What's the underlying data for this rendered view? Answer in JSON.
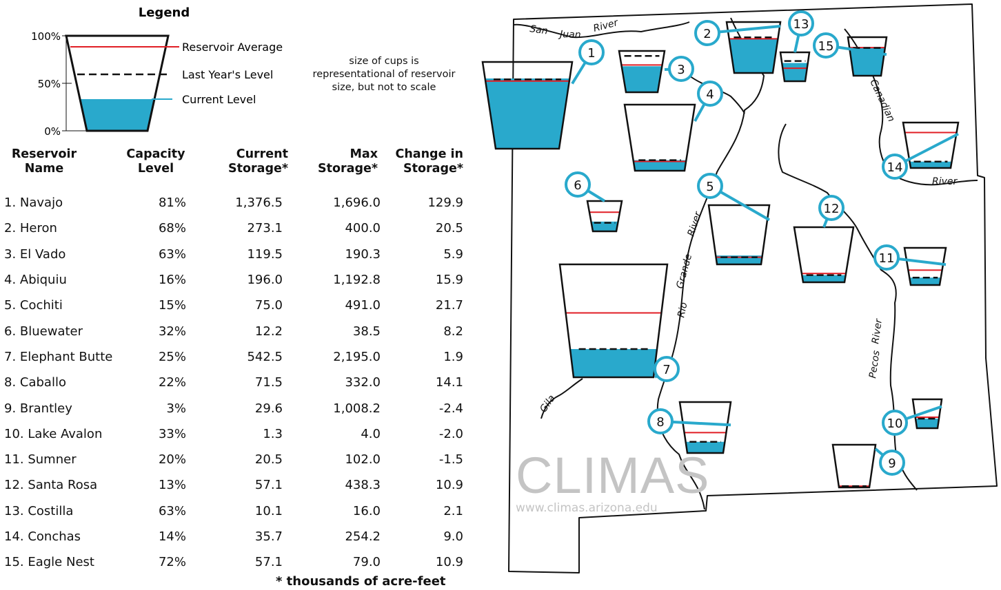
{
  "legend": {
    "title": "Legend",
    "tick_100": "100%",
    "tick_50": "50%",
    "tick_0": "0%",
    "label_average": "Reservoir Average",
    "label_last_year": "Last Year's Level",
    "label_current": "Current Level"
  },
  "note": {
    "line1": "size of cups is",
    "line2": "representational of reservoir",
    "line3": "size, but not to scale"
  },
  "table": {
    "headers": [
      {
        "line1": "Reservoir",
        "line2": "Name"
      },
      {
        "line1": "Capacity",
        "line2": "Level"
      },
      {
        "line1": "Current",
        "line2": "Storage*"
      },
      {
        "line1": "Max",
        "line2": "Storage*"
      },
      {
        "line1": "Change in",
        "line2": "Storage*"
      }
    ],
    "rows": [
      {
        "name": "1. Navajo",
        "capacity": "81%",
        "current": "1,376.5",
        "max": "1,696.0",
        "change": "129.9"
      },
      {
        "name": "2. Heron",
        "capacity": "68%",
        "current": "273.1",
        "max": "400.0",
        "change": "20.5"
      },
      {
        "name": "3. El Vado",
        "capacity": "63%",
        "current": "119.5",
        "max": "190.3",
        "change": "5.9"
      },
      {
        "name": "4. Abiquiu",
        "capacity": "16%",
        "current": "196.0",
        "max": "1,192.8",
        "change": "15.9"
      },
      {
        "name": "5. Cochiti",
        "capacity": "15%",
        "current": "75.0",
        "max": "491.0",
        "change": "21.7"
      },
      {
        "name": "6. Bluewater",
        "capacity": "32%",
        "current": "12.2",
        "max": "38.5",
        "change": "8.2"
      },
      {
        "name": "7. Elephant Butte",
        "capacity": "25%",
        "current": "542.5",
        "max": "2,195.0",
        "change": "1.9"
      },
      {
        "name": "8. Caballo",
        "capacity": "22%",
        "current": "71.5",
        "max": "332.0",
        "change": "14.1"
      },
      {
        "name": "9. Brantley",
        "capacity": "3%",
        "current": "29.6",
        "max": "1,008.2",
        "change": "-2.4"
      },
      {
        "name": "10. Lake Avalon",
        "capacity": "33%",
        "current": "1.3",
        "max": "4.0",
        "change": "-2.0"
      },
      {
        "name": "11. Sumner",
        "capacity": "20%",
        "current": "20.5",
        "max": "102.0",
        "change": "-1.5"
      },
      {
        "name": "12. Santa Rosa",
        "capacity": "13%",
        "current": "57.1",
        "max": "438.3",
        "change": "10.9"
      },
      {
        "name": "13. Costilla",
        "capacity": "63%",
        "current": "10.1",
        "max": "16.0",
        "change": "2.1"
      },
      {
        "name": "14. Conchas",
        "capacity": "14%",
        "current": "35.7",
        "max": "254.2",
        "change": "9.0"
      },
      {
        "name": "15. Eagle Nest",
        "capacity": "72%",
        "current": "57.1",
        "max": "79.0",
        "change": "10.9"
      }
    ],
    "footnote": "* thousands of acre-feet"
  },
  "map": {
    "rivers": {
      "san": "San",
      "juan": "Juan",
      "san_juan_river": "River",
      "rio": "Rio",
      "grande": "Grande",
      "rio_grande_river": "River",
      "canadian": "Canadian",
      "canadian_river": "River",
      "pecos": "Pecos",
      "pecos_river": "River",
      "gila": "Gila"
    },
    "cups": [
      {
        "num": "1",
        "current": 0.81,
        "average": 0.78,
        "last": 0.8
      },
      {
        "num": "2",
        "current": 0.68,
        "average": 0.67,
        "last": 0.7
      },
      {
        "num": "3",
        "current": 0.63,
        "average": 0.66,
        "last": 0.88
      },
      {
        "num": "4",
        "current": 0.16,
        "average": 0.14,
        "last": 0.16
      },
      {
        "num": "5",
        "current": 0.15,
        "average": 0.12,
        "last": 0.12
      },
      {
        "num": "6",
        "current": 0.32,
        "average": 0.63,
        "last": 0.28
      },
      {
        "num": "7",
        "current": 0.25,
        "average": 0.57,
        "last": 0.25
      },
      {
        "num": "8",
        "current": 0.22,
        "average": 0.4,
        "last": 0.22
      },
      {
        "num": "9",
        "current": 0.03,
        "average": 0.03,
        "last": 0.03
      },
      {
        "num": "10",
        "current": 0.33,
        "average": 0.38,
        "last": 0.33
      },
      {
        "num": "11",
        "current": 0.2,
        "average": 0.4,
        "last": 0.2
      },
      {
        "num": "12",
        "current": 0.13,
        "average": 0.16,
        "last": 0.13
      },
      {
        "num": "13",
        "current": 0.63,
        "average": 0.45,
        "last": 0.7
      },
      {
        "num": "14",
        "current": 0.14,
        "average": 0.78,
        "last": 0.14
      },
      {
        "num": "15",
        "current": 0.72,
        "average": 0.73,
        "last": 0.72
      }
    ]
  },
  "watermark": {
    "name": "CLIMAS",
    "url": "www.climas.arizona.edu"
  },
  "colors": {
    "water": "#29a9cc",
    "average": "#e11d24",
    "callout": "#29a9cc"
  }
}
